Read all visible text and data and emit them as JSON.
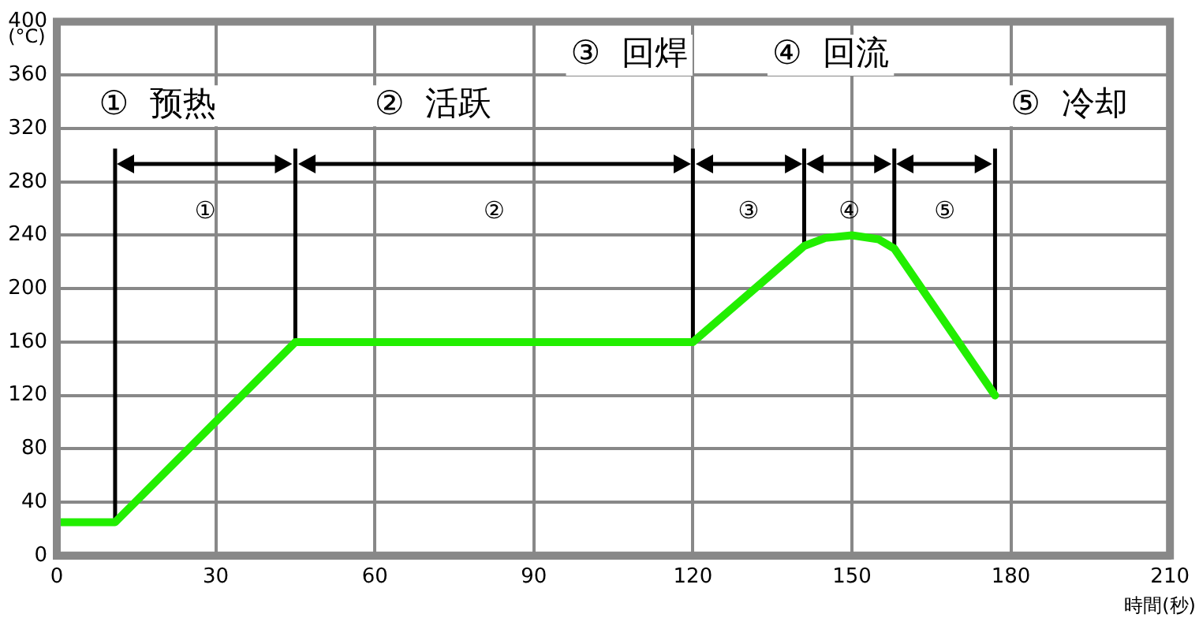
{
  "chart_data": {
    "type": "line",
    "xlabel": "時間(秒)",
    "ylabel": "(°C)",
    "x": [
      0,
      11,
      45,
      120,
      141,
      145,
      150,
      155,
      158,
      177
    ],
    "series": [
      {
        "color": "#22ee00",
        "values": [
          25,
          25,
          160,
          160,
          232,
          238,
          240,
          237,
          230,
          120
        ]
      }
    ],
    "xlim": [
      0,
      210
    ],
    "xticks": [
      0,
      30,
      60,
      90,
      120,
      150,
      180,
      210
    ],
    "ylim": [
      0,
      400
    ],
    "yticks": [
      0,
      40,
      80,
      120,
      160,
      200,
      240,
      280,
      320,
      360,
      400
    ],
    "grid": true,
    "legend": false,
    "marker": "none",
    "line_style": "solid",
    "ref_lines": [
      {
        "axis": "x",
        "value": 11,
        "color": "#000000"
      },
      {
        "axis": "x",
        "value": 45,
        "color": "#000000"
      },
      {
        "axis": "x",
        "value": 120,
        "color": "#000000"
      },
      {
        "axis": "x",
        "value": 141,
        "color": "#000000"
      },
      {
        "axis": "x",
        "value": 158,
        "color": "#000000"
      },
      {
        "axis": "x",
        "value": 177,
        "color": "#000000"
      }
    ],
    "annotations": [
      "①  预热",
      "②  活跃",
      "③  回焊",
      "④  回流",
      "⑤  冷却",
      "①",
      "②",
      "③",
      "④",
      "⑤"
    ]
  }
}
